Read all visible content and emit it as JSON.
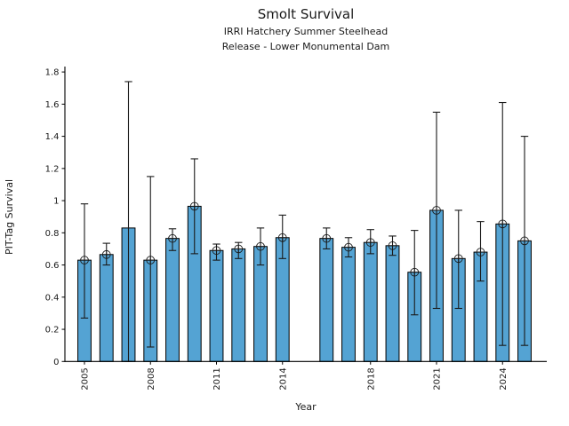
{
  "header": {
    "title": "Smolt Survival",
    "subtitle_line1": "IRRI Hatchery Summer Steelhead",
    "subtitle_line2": "Release - Lower Monumental Dam"
  },
  "chart_data": {
    "type": "bar",
    "title": "Smolt Survival",
    "subtitle_lines": [
      "IRRI Hatchery Summer Steelhead",
      "Release - Lower Monumental Dam"
    ],
    "xlabel": "Year",
    "ylabel": "PIT-Tag Survival",
    "ylim": [
      0,
      1.8
    ],
    "yticks": [
      {
        "v": 0,
        "label": "0"
      },
      {
        "v": 0.2,
        "label": "0.2"
      },
      {
        "v": 0.4,
        "label": "0.4"
      },
      {
        "v": 0.6,
        "label": "0.6"
      },
      {
        "v": 0.8,
        "label": "0.8"
      },
      {
        "v": 1.0,
        "label": "1"
      },
      {
        "v": 1.2,
        "label": "1.2"
      },
      {
        "v": 1.4,
        "label": "1.4"
      },
      {
        "v": 1.6,
        "label": "1.6"
      },
      {
        "v": 1.8,
        "label": "1.8"
      }
    ],
    "xticks": [
      2005,
      2008,
      2011,
      2014,
      2018,
      2021,
      2024
    ],
    "x_range": [
      2005,
      2025
    ],
    "missing_years": [
      2015
    ],
    "grid": false,
    "legend": "none",
    "error_bars": "95% interval whiskers with caps",
    "marker_style": "open circle with cross (circle-plus) at bar top",
    "styles": {
      "bar_fill": "#54A3D3",
      "bar_edge": "#000000",
      "error_color": "#1a1a1a",
      "marker_color": "#1a1a1a",
      "background": "#ffffff",
      "text_color": "#1a1a1a"
    },
    "series": [
      {
        "year": 2005,
        "value": 0.63,
        "ci_low": 0.27,
        "ci_high": 0.98,
        "marker": true
      },
      {
        "year": 2006,
        "value": 0.665,
        "ci_low": 0.6,
        "ci_high": 0.735,
        "marker": true
      },
      {
        "year": 2007,
        "value": 0.83,
        "ci_low": 0.0,
        "ci_high": 1.74,
        "marker": false
      },
      {
        "year": 2008,
        "value": 0.63,
        "ci_low": 0.09,
        "ci_high": 1.15,
        "marker": true
      },
      {
        "year": 2009,
        "value": 0.765,
        "ci_low": 0.69,
        "ci_high": 0.825,
        "marker": true
      },
      {
        "year": 2010,
        "value": 0.965,
        "ci_low": 0.67,
        "ci_high": 1.26,
        "marker": true
      },
      {
        "year": 2011,
        "value": 0.69,
        "ci_low": 0.63,
        "ci_high": 0.73,
        "marker": true
      },
      {
        "year": 2012,
        "value": 0.7,
        "ci_low": 0.64,
        "ci_high": 0.74,
        "marker": true
      },
      {
        "year": 2013,
        "value": 0.715,
        "ci_low": 0.6,
        "ci_high": 0.83,
        "marker": true
      },
      {
        "year": 2014,
        "value": 0.77,
        "ci_low": 0.64,
        "ci_high": 0.91,
        "marker": true
      },
      {
        "year": 2016,
        "value": 0.765,
        "ci_low": 0.7,
        "ci_high": 0.83,
        "marker": true
      },
      {
        "year": 2017,
        "value": 0.71,
        "ci_low": 0.65,
        "ci_high": 0.77,
        "marker": true
      },
      {
        "year": 2018,
        "value": 0.74,
        "ci_low": 0.67,
        "ci_high": 0.82,
        "marker": true
      },
      {
        "year": 2019,
        "value": 0.72,
        "ci_low": 0.66,
        "ci_high": 0.78,
        "marker": true
      },
      {
        "year": 2020,
        "value": 0.555,
        "ci_low": 0.29,
        "ci_high": 0.815,
        "marker": true
      },
      {
        "year": 2021,
        "value": 0.94,
        "ci_low": 0.33,
        "ci_high": 1.55,
        "marker": true
      },
      {
        "year": 2022,
        "value": 0.64,
        "ci_low": 0.33,
        "ci_high": 0.94,
        "marker": true
      },
      {
        "year": 2023,
        "value": 0.68,
        "ci_low": 0.5,
        "ci_high": 0.87,
        "marker": true
      },
      {
        "year": 2024,
        "value": 0.855,
        "ci_low": 0.1,
        "ci_high": 1.61,
        "marker": true
      },
      {
        "year": 2025,
        "value": 0.75,
        "ci_low": 0.1,
        "ci_high": 1.4,
        "marker": true
      }
    ]
  }
}
